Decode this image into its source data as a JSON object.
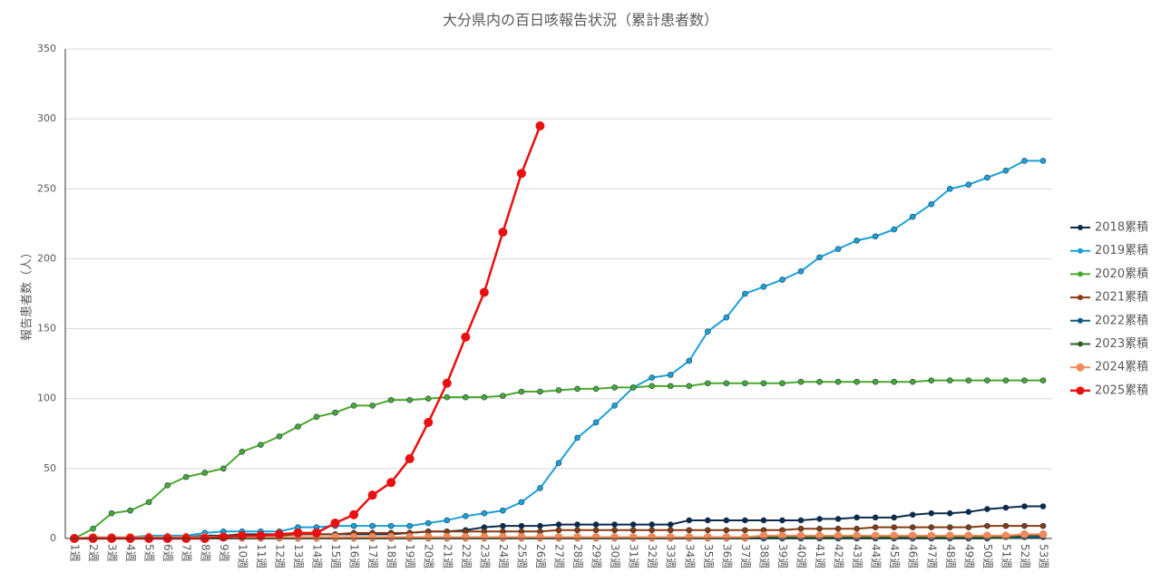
{
  "chart_data": {
    "type": "line",
    "title": "大分県内の百日咳報告状況（累計患者数）",
    "y_label": "報告患者数（人）",
    "categories": [
      "1週",
      "2週",
      "3週",
      "4週",
      "5週",
      "6週",
      "7週",
      "8週",
      "9週",
      "10週",
      "11週",
      "12週",
      "13週",
      "14週",
      "15週",
      "16週",
      "17週",
      "18週",
      "19週",
      "20週",
      "21週",
      "22週",
      "23週",
      "24週",
      "25週",
      "26週",
      "27週",
      "28週",
      "29週",
      "30週",
      "31週",
      "32週",
      "33週",
      "34週",
      "35週",
      "36週",
      "37週",
      "38週",
      "39週",
      "40週",
      "41週",
      "42週",
      "43週",
      "44週",
      "45週",
      "46週",
      "47週",
      "48週",
      "49週",
      "50週",
      "51週",
      "52週",
      "53週"
    ],
    "ylim": [
      0,
      350
    ],
    "yticks": [
      0,
      50,
      100,
      150,
      200,
      250,
      300,
      350
    ],
    "grid": true,
    "legend": "right",
    "series": [
      {
        "name": "2018累積",
        "color": "#0d2a4a",
        "values": [
          0,
          0,
          0,
          1,
          1,
          1,
          1,
          2,
          2,
          3,
          3,
          3,
          3,
          3,
          3,
          3,
          3,
          3,
          4,
          5,
          5,
          6,
          8,
          9,
          9,
          9,
          10,
          10,
          10,
          10,
          10,
          10,
          10,
          13,
          13,
          13,
          13,
          13,
          13,
          13,
          14,
          14,
          15,
          15,
          15,
          17,
          18,
          18,
          19,
          21,
          22,
          23,
          23
        ]
      },
      {
        "name": "2019累積",
        "color": "#1ba1d6",
        "values": [
          0,
          0,
          1,
          1,
          2,
          2,
          2,
          4,
          5,
          5,
          5,
          5,
          8,
          8,
          9,
          9,
          9,
          9,
          9,
          11,
          13,
          16,
          18,
          20,
          26,
          36,
          54,
          72,
          83,
          95,
          108,
          115,
          117,
          127,
          148,
          158,
          175,
          180,
          185,
          191,
          201,
          207,
          213,
          216,
          221,
          230,
          239,
          250,
          253,
          258,
          263,
          270,
          270
        ]
      },
      {
        "name": "2020累積",
        "color": "#4aa82c",
        "values": [
          0,
          7,
          18,
          20,
          26,
          38,
          44,
          47,
          50,
          62,
          67,
          73,
          80,
          87,
          90,
          95,
          95,
          99,
          99,
          100,
          101,
          101,
          101,
          102,
          105,
          105,
          106,
          107,
          107,
          108,
          108,
          109,
          109,
          109,
          111,
          111,
          111,
          111,
          111,
          112,
          112,
          112,
          112,
          112,
          112,
          112,
          113,
          113,
          113,
          113,
          113,
          113,
          113
        ]
      },
      {
        "name": "2021累積",
        "color": "#8b3a0f",
        "values": [
          0,
          0,
          0,
          1,
          1,
          1,
          1,
          1,
          2,
          2,
          2,
          2,
          3,
          3,
          3,
          4,
          4,
          4,
          4,
          5,
          5,
          5,
          5,
          5,
          5,
          5,
          6,
          6,
          6,
          6,
          6,
          6,
          6,
          6,
          6,
          6,
          6,
          6,
          6,
          7,
          7,
          7,
          7,
          8,
          8,
          8,
          8,
          8,
          8,
          9,
          9,
          9,
          9
        ]
      },
      {
        "name": "2022累積",
        "color": "#0e5a7e",
        "values": [
          0,
          0,
          0,
          0,
          0,
          0,
          0,
          0,
          0,
          0,
          0,
          0,
          0,
          0,
          0,
          0,
          0,
          0,
          0,
          0,
          0,
          0,
          0,
          0,
          0,
          0,
          0,
          0,
          0,
          0,
          0,
          0,
          0,
          0,
          0,
          0,
          0,
          0,
          0,
          0,
          0,
          0,
          0,
          0,
          0,
          0,
          0,
          0,
          0,
          0,
          1,
          1,
          1
        ]
      },
      {
        "name": "2023累積",
        "color": "#2f5e1e",
        "values": [
          0,
          0,
          0,
          0,
          0,
          0,
          0,
          0,
          0,
          0,
          0,
          0,
          0,
          0,
          0,
          0,
          0,
          0,
          0,
          0,
          0,
          0,
          0,
          0,
          0,
          0,
          0,
          0,
          0,
          0,
          0,
          0,
          0,
          0,
          0,
          0,
          0,
          1,
          1,
          1,
          1,
          1,
          1,
          1,
          1,
          1,
          1,
          1,
          1,
          1,
          1,
          2,
          2
        ]
      },
      {
        "name": "2024累積",
        "color": "#f08a5a",
        "values": [
          0,
          1,
          1,
          1,
          1,
          1,
          1,
          1,
          1,
          1,
          1,
          1,
          1,
          1,
          1,
          1,
          1,
          1,
          1,
          1,
          1,
          1,
          1,
          1,
          1,
          1,
          1,
          1,
          1,
          1,
          1,
          1,
          1,
          1,
          1,
          1,
          1,
          2,
          2,
          2,
          2,
          2,
          2,
          2,
          2,
          2,
          2,
          2,
          2,
          2,
          2,
          3,
          3
        ]
      },
      {
        "name": "2025累積",
        "color": "#e81010",
        "values": [
          0,
          0,
          0,
          0,
          0,
          0,
          0,
          0,
          1,
          2,
          2,
          3,
          4,
          4,
          11,
          17,
          31,
          40,
          57,
          83,
          111,
          144,
          176,
          219,
          261,
          295,
          null,
          null,
          null,
          null,
          null,
          null,
          null,
          null,
          null,
          null,
          null,
          null,
          null,
          null,
          null,
          null,
          null,
          null,
          null,
          null,
          null,
          null,
          null,
          null,
          null,
          null,
          null
        ]
      }
    ]
  }
}
